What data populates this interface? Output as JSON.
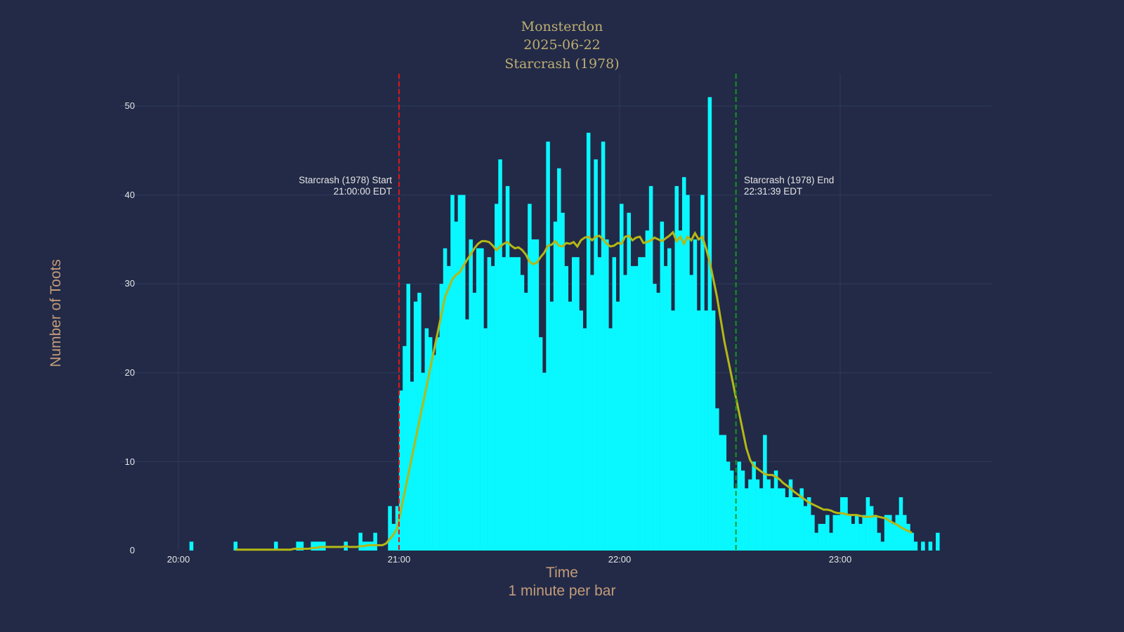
{
  "title": {
    "line1": "Monsterdon",
    "line2": "2025-06-22",
    "line3": "Starcrash (1978)"
  },
  "axes": {
    "ylabel": "Number of Toots",
    "xlabel_line1": "Time",
    "xlabel_line2": "1 minute per bar",
    "yticks": [
      "0",
      "10",
      "20",
      "30",
      "40",
      "50"
    ],
    "xticks": [
      "20:00",
      "21:00",
      "22:00",
      "23:00"
    ]
  },
  "annotations": {
    "start_label": "Starcrash (1978) Start",
    "start_time": "21:00:00 EDT",
    "end_label": "Starcrash (1978) End",
    "end_time": "22:31:39 EDT"
  },
  "colors": {
    "background": "#222a47",
    "bars": "#09f7ff",
    "rolling_line": "#b5b814",
    "start_line": "#e0161b",
    "end_line": "#0f9a17",
    "title": "#bfae73",
    "axis_title": "#c49b7a",
    "grid": "#2f3a5c"
  },
  "chart_data": {
    "type": "bar",
    "title": "Monsterdon 2025-06-22 Starcrash (1978)",
    "xlabel": "Time (1 minute per bar)",
    "ylabel": "Number of Toots",
    "ylim": [
      0,
      53
    ],
    "x_start": "20:00",
    "bin_minutes": 1,
    "grid": true,
    "values": [
      0,
      0,
      0,
      1,
      0,
      0,
      0,
      0,
      0,
      0,
      0,
      0,
      0,
      0,
      0,
      1,
      0,
      0,
      0,
      0,
      0,
      0,
      0,
      0,
      0,
      0,
      1,
      0,
      0,
      0,
      0,
      0,
      1,
      1,
      0,
      0,
      1,
      1,
      1,
      1,
      0,
      0,
      0,
      0,
      0,
      1,
      0,
      0,
      0,
      2,
      1,
      1,
      1,
      2,
      0,
      0,
      0,
      5,
      3,
      5,
      18,
      23,
      30,
      19,
      28,
      29,
      20,
      25,
      24,
      22,
      24,
      30,
      34,
      32,
      40,
      37,
      40,
      40,
      26,
      35,
      29,
      34,
      34,
      25,
      33,
      32,
      39,
      44,
      33,
      41,
      33,
      33,
      33,
      31,
      29,
      39,
      35,
      35,
      24,
      20,
      46,
      28,
      37,
      43,
      38,
      32,
      28,
      33,
      33,
      27,
      25,
      47,
      31,
      44,
      33,
      46,
      35,
      25,
      33,
      28,
      39,
      31,
      38,
      32,
      32,
      33,
      33,
      36,
      41,
      30,
      29,
      37,
      32,
      34,
      27,
      41,
      36,
      42,
      40,
      31,
      35,
      27,
      40,
      27,
      51,
      27,
      16,
      13,
      13,
      10,
      9,
      7,
      10,
      9,
      7,
      8,
      10,
      8,
      7,
      13,
      8,
      7,
      9,
      7,
      7,
      6,
      8,
      6,
      6,
      7,
      5,
      6,
      4,
      2,
      3,
      3,
      4,
      2,
      4,
      4,
      6,
      6,
      4,
      3,
      4,
      3,
      4,
      6,
      5,
      4,
      2,
      1,
      4,
      4,
      3,
      4,
      6,
      4,
      3,
      2,
      1,
      0,
      1,
      0,
      1,
      0,
      2
    ],
    "rolling_mean": [
      null,
      null,
      null,
      null,
      null,
      null,
      null,
      null,
      null,
      null,
      null,
      null,
      null,
      null,
      null,
      0.1,
      0.1,
      0.1,
      0.1,
      0.1,
      0.1,
      0.1,
      0.1,
      0.1,
      0.1,
      0.1,
      0.1,
      0.1,
      0.1,
      0.1,
      0.1,
      0.2,
      0.2,
      0.2,
      0.2,
      0.2,
      0.3,
      0.3,
      0.4,
      0.4,
      0.4,
      0.4,
      0.4,
      0.4,
      0.4,
      0.5,
      0.4,
      0.4,
      0.4,
      0.5,
      0.5,
      0.6,
      0.6,
      0.6,
      0.6,
      0.6,
      0.8,
      1.3,
      1.8,
      2.5,
      4.5,
      6.5,
      8.5,
      10.5,
      12.5,
      14.5,
      16.5,
      18.5,
      20.5,
      22.5,
      24.5,
      26.5,
      28.5,
      29.5,
      30.5,
      31.0,
      31.3,
      32.0,
      32.7,
      33.3,
      34.0,
      34.5,
      34.8,
      34.8,
      34.7,
      34.3,
      33.8,
      34.2,
      34.5,
      34.7,
      34.3,
      34.0,
      34.1,
      33.8,
      33.3,
      32.5,
      32.2,
      32.4,
      33.0,
      33.5,
      34.3,
      34.4,
      34.8,
      34.3,
      34.2,
      34.6,
      34.5,
      34.7,
      34.2,
      34.9,
      35.2,
      35.3,
      34.9,
      35.3,
      35.4,
      35.0,
      34.5,
      34.2,
      34.3,
      34.6,
      34.5,
      35.3,
      35.4,
      34.9,
      35.2,
      35.3,
      34.6,
      34.7,
      34.9,
      35.2,
      35.0,
      34.8,
      35.1,
      35.4,
      35.8,
      34.8,
      35.3,
      34.5,
      35.3,
      34.9,
      35.7,
      35.0,
      35.3,
      34.0,
      32.5,
      30.5,
      28.5,
      26.0,
      23.5,
      21.5,
      19.5,
      17.5,
      15.5,
      13.5,
      11.5,
      10.2,
      9.5,
      9.2,
      8.9,
      8.6,
      8.5,
      8.5,
      8.3,
      8.0,
      7.6,
      7.3,
      7.0,
      6.6,
      6.3,
      6.0,
      5.7,
      5.4,
      5.2,
      5.0,
      4.8,
      4.6,
      4.6,
      4.5,
      4.3,
      4.2,
      4.2,
      4.1,
      4.0,
      4.0,
      4.0,
      3.9,
      3.8,
      3.8,
      3.8,
      3.9,
      3.8,
      3.7,
      3.6,
      3.3,
      3.1,
      2.9,
      2.6,
      2.4,
      2.2,
      2.0
    ]
  }
}
